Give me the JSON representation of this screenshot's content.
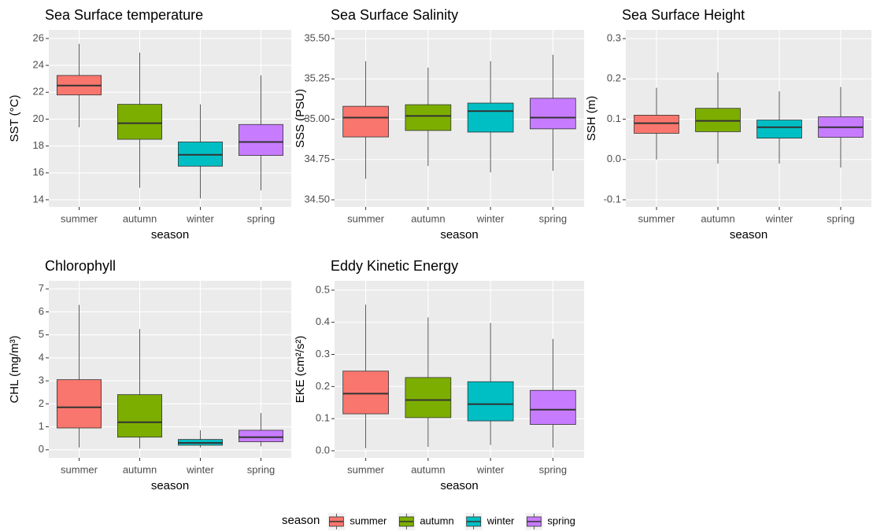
{
  "chart_data": [
    {
      "type": "box",
      "title": "Sea Surface temperature",
      "x_label": "season",
      "y_label": "SST (°C)",
      "categories": [
        "summer",
        "autumn",
        "winter",
        "spring"
      ],
      "colors": [
        "#f8766d",
        "#7cae00",
        "#00bfc4",
        "#c77cff"
      ],
      "whisker_low": [
        19.4,
        14.9,
        14.1,
        14.7
      ],
      "q1": [
        21.8,
        18.5,
        16.5,
        17.3
      ],
      "median": [
        22.5,
        19.7,
        17.35,
        18.3
      ],
      "q3": [
        23.25,
        21.1,
        18.3,
        19.6
      ],
      "whisker_high": [
        25.6,
        24.95,
        21.1,
        23.25
      ],
      "ylim": [
        13.47,
        26.64
      ],
      "yticks": [
        14,
        16,
        18,
        20,
        22,
        24,
        26
      ],
      "grid": true
    },
    {
      "type": "box",
      "title": "Sea Surface Salinity",
      "x_label": "season",
      "y_label": "SSS (PSU)",
      "categories": [
        "summer",
        "autumn",
        "winter",
        "spring"
      ],
      "colors": [
        "#f8766d",
        "#7cae00",
        "#00bfc4",
        "#c77cff"
      ],
      "whisker_low": [
        34.63,
        34.71,
        34.67,
        34.68
      ],
      "q1": [
        34.89,
        34.93,
        34.92,
        34.94
      ],
      "median": [
        35.01,
        35.02,
        35.05,
        35.01
      ],
      "q3": [
        35.08,
        35.09,
        35.1,
        35.13
      ],
      "whisker_high": [
        35.36,
        35.32,
        35.36,
        35.4
      ],
      "ylim": [
        34.456,
        35.554
      ],
      "yticks": [
        {
          "value": 34.5,
          "label": "34.50"
        },
        34.75,
        {
          "value": 35,
          "label": "35.00"
        },
        35.25,
        {
          "value": 35.5,
          "label": "35.50"
        }
      ],
      "grid": true
    },
    {
      "type": "box",
      "title": "Sea Surface Height",
      "x_label": "season",
      "y_label": "SSH (m)",
      "categories": [
        "summer",
        "autumn",
        "winter",
        "spring"
      ],
      "colors": [
        "#f8766d",
        "#7cae00",
        "#00bfc4",
        "#c77cff"
      ],
      "whisker_low": [
        0,
        -0.01,
        -0.01,
        -0.02
      ],
      "q1": [
        0.065,
        0.069,
        0.053,
        0.055
      ],
      "median": [
        0.09,
        0.096,
        0.08,
        0.08
      ],
      "q3": [
        0.11,
        0.127,
        0.098,
        0.106
      ],
      "whisker_high": [
        0.178,
        0.216,
        0.169,
        0.18
      ],
      "ylim": [
        -0.1176,
        0.3216
      ],
      "yticks": [
        -0.1,
        {
          "value": 0,
          "label": "0.0"
        },
        0.1,
        0.2,
        0.3
      ],
      "grid": true
    },
    {
      "type": "box",
      "title": "Chlorophyll",
      "x_label": "season",
      "y_label": "CHL (mg/m³)",
      "categories": [
        "summer",
        "autumn",
        "winter",
        "spring"
      ],
      "colors": [
        "#f8766d",
        "#7cae00",
        "#00bfc4",
        "#c77cff"
      ],
      "whisker_low": [
        0.1,
        0.05,
        0.1,
        0.15
      ],
      "q1": [
        0.95,
        0.55,
        0.2,
        0.35
      ],
      "median": [
        1.85,
        1.2,
        0.3,
        0.55
      ],
      "q3": [
        3.05,
        2.4,
        0.45,
        0.85
      ],
      "whisker_high": [
        6.3,
        5.25,
        0.85,
        1.6
      ],
      "ylim": [
        -0.35,
        7.35
      ],
      "yticks": [
        0,
        1,
        2,
        3,
        4,
        5,
        6,
        7
      ],
      "grid": true
    },
    {
      "type": "box",
      "title": "Eddy Kinetic Energy",
      "x_label": "season",
      "y_label": "EKE (cm²/s²)",
      "categories": [
        "summer",
        "autumn",
        "winter",
        "spring"
      ],
      "colors": [
        "#f8766d",
        "#7cae00",
        "#00bfc4",
        "#c77cff"
      ],
      "whisker_low": [
        0.008,
        0.012,
        0.018,
        0.01
      ],
      "q1": [
        0.115,
        0.103,
        0.093,
        0.082
      ],
      "median": [
        0.178,
        0.158,
        0.145,
        0.128
      ],
      "q3": [
        0.248,
        0.228,
        0.215,
        0.188
      ],
      "whisker_high": [
        0.455,
        0.415,
        0.398,
        0.348
      ],
      "ylim": [
        -0.022,
        0.529
      ],
      "yticks": [
        {
          "value": 0,
          "label": "0.0"
        },
        0.1,
        0.2,
        0.3,
        0.4,
        0.5
      ],
      "grid": true
    }
  ],
  "legend": {
    "title": "season",
    "position": "bottom"
  }
}
